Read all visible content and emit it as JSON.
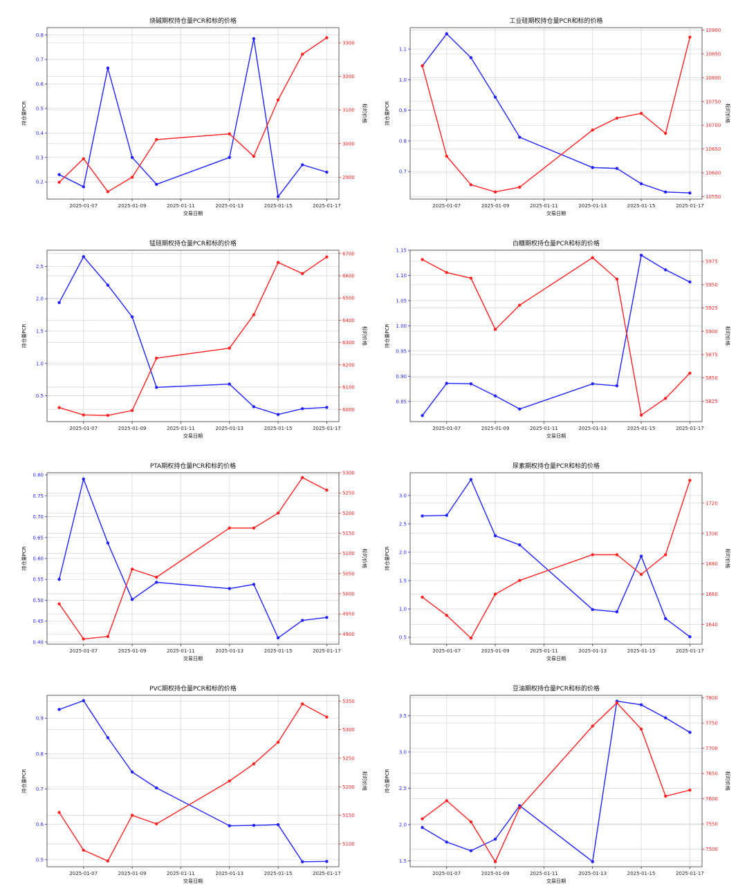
{
  "colors": {
    "pcr": "#1f1fff",
    "price": "#ff1f1f",
    "grid": "#d9d9d9",
    "axis": "#333333"
  },
  "chart_data": [
    {
      "type": "line",
      "title": "烧碱期权持仓量PCR和标的价格",
      "xlabel": "交易日期",
      "ylabel_left": "持仓量PCR",
      "ylabel_right": "标的价格",
      "x": [
        "2025-01-06",
        "2025-01-07",
        "2025-01-08",
        "2025-01-09",
        "2025-01-10",
        "2025-01-13",
        "2025-01-14",
        "2025-01-15",
        "2025-01-16",
        "2025-01-17"
      ],
      "xtick_labels": [
        "2025-01-07",
        "2025-01-09",
        "2025-01-11",
        "2025-01-13",
        "2025-01-15",
        "2025-01-17"
      ],
      "series": [
        {
          "values": [
            0.23,
            0.18,
            0.665,
            0.3,
            0.19,
            0.3,
            0.785,
            0.14,
            0.27,
            0.24
          ],
          "axis": "left"
        },
        {
          "values": [
            2885,
            2955,
            2857,
            2900,
            3012,
            3029,
            2962,
            3130,
            3266,
            3315
          ],
          "axis": "right"
        }
      ],
      "ylim_left": [
        0.13,
        0.83
      ],
      "yticks_left": [
        "0.2",
        "0.3",
        "0.4",
        "0.5",
        "0.6",
        "0.7",
        "0.8"
      ],
      "ylim_right": [
        2835,
        3345
      ],
      "yticks_right": [
        "2900",
        "3000",
        "3100",
        "3200",
        "3300"
      ]
    },
    {
      "type": "line",
      "title": "工业硅期权持仓量PCR和标的价格",
      "xlabel": "交易日期",
      "ylabel_left": "持仓量PCR",
      "ylabel_right": "标的价格",
      "x": [
        "2025-01-06",
        "2025-01-07",
        "2025-01-08",
        "2025-01-09",
        "2025-01-10",
        "2025-01-13",
        "2025-01-14",
        "2025-01-15",
        "2025-01-16",
        "2025-01-17"
      ],
      "xtick_labels": [
        "2025-01-07",
        "2025-01-09",
        "2025-01-11",
        "2025-01-13",
        "2025-01-15",
        "2025-01-17"
      ],
      "series": [
        {
          "values": [
            1.045,
            1.15,
            1.072,
            0.943,
            0.812,
            0.713,
            0.71,
            0.66,
            0.633,
            0.63
          ],
          "axis": "left"
        },
        {
          "values": [
            10825,
            10635,
            10575,
            10560,
            10570,
            10690,
            10715,
            10725,
            10683,
            10885
          ],
          "axis": "right"
        }
      ],
      "ylim_left": [
        0.61,
        1.17
      ],
      "yticks_left": [
        "0.7",
        "0.8",
        "0.9",
        "1.0",
        "1.1"
      ],
      "ylim_right": [
        10545,
        10905
      ],
      "yticks_right": [
        "10550",
        "10600",
        "10650",
        "10700",
        "10750",
        "10800",
        "10850",
        "10900"
      ]
    },
    {
      "type": "line",
      "title": "锰硅期权持仓量PCR和标的价格",
      "xlabel": "交易日期",
      "ylabel_left": "持仓量PCR",
      "ylabel_right": "标的价格",
      "x": [
        "2025-01-06",
        "2025-01-07",
        "2025-01-08",
        "2025-01-09",
        "2025-01-10",
        "2025-01-13",
        "2025-01-14",
        "2025-01-15",
        "2025-01-16",
        "2025-01-17"
      ],
      "xtick_labels": [
        "2025-01-07",
        "2025-01-09",
        "2025-01-11",
        "2025-01-13",
        "2025-01-15",
        "2025-01-17"
      ],
      "series": [
        {
          "values": [
            1.94,
            2.65,
            2.21,
            1.72,
            0.63,
            0.68,
            0.33,
            0.21,
            0.3,
            0.32
          ],
          "axis": "left"
        },
        {
          "values": [
            6008,
            5975,
            5973,
            5995,
            6230,
            6275,
            6425,
            6660,
            6610,
            6685
          ],
          "axis": "right"
        }
      ],
      "ylim_left": [
        0.1,
        2.75
      ],
      "yticks_left": [
        "0.5",
        "1.0",
        "1.5",
        "2.0",
        "2.5"
      ],
      "ylim_right": [
        5945,
        6715
      ],
      "yticks_right": [
        "6000",
        "6100",
        "6200",
        "6300",
        "6400",
        "6500",
        "6600",
        "6700"
      ]
    },
    {
      "type": "line",
      "title": "白糖期权持仓量PCR和标的价格",
      "xlabel": "交易日期",
      "ylabel_left": "持仓量PCR",
      "ylabel_right": "标的价格",
      "x": [
        "2025-01-06",
        "2025-01-07",
        "2025-01-08",
        "2025-01-09",
        "2025-01-10",
        "2025-01-13",
        "2025-01-14",
        "2025-01-15",
        "2025-01-16",
        "2025-01-17"
      ],
      "xtick_labels": [
        "2025-01-07",
        "2025-01-09",
        "2025-01-11",
        "2025-01-13",
        "2025-01-15",
        "2025-01-17"
      ],
      "series": [
        {
          "values": [
            0.822,
            0.886,
            0.885,
            0.861,
            0.835,
            0.885,
            0.881,
            1.14,
            1.111,
            1.087
          ],
          "axis": "left"
        },
        {
          "values": [
            5977,
            5963,
            5957,
            5902,
            5928,
            5979,
            5956,
            5810,
            5828,
            5855
          ],
          "axis": "right"
        }
      ],
      "ylim_left": [
        0.81,
        1.15
      ],
      "yticks_left": [
        "0.85",
        "0.90",
        "0.95",
        "1.00",
        "1.05",
        "1.10",
        "1.15"
      ],
      "ylim_right": [
        5803,
        5987
      ],
      "yticks_right": [
        "5825",
        "5850",
        "5875",
        "5900",
        "5925",
        "5950",
        "5975"
      ]
    },
    {
      "type": "line",
      "title": "PTA期权持仓量PCR和标的价格",
      "xlabel": "交易日期",
      "ylabel_left": "持仓量PCR",
      "ylabel_right": "标的价格",
      "x": [
        "2025-01-06",
        "2025-01-07",
        "2025-01-08",
        "2025-01-09",
        "2025-01-10",
        "2025-01-13",
        "2025-01-14",
        "2025-01-15",
        "2025-01-16",
        "2025-01-17"
      ],
      "xtick_labels": [
        "2025-01-07",
        "2025-01-09",
        "2025-01-11",
        "2025-01-13",
        "2025-01-15",
        "2025-01-17"
      ],
      "series": [
        {
          "values": [
            0.55,
            0.79,
            0.637,
            0.502,
            0.543,
            0.528,
            0.538,
            0.41,
            0.452,
            0.459
          ],
          "axis": "left"
        },
        {
          "values": [
            4975,
            4888,
            4894,
            5061,
            5041,
            5163,
            5163,
            5200,
            5288,
            5257
          ],
          "axis": "right"
        }
      ],
      "ylim_left": [
        0.395,
        0.805
      ],
      "yticks_left": [
        "0.40",
        "0.45",
        "0.50",
        "0.55",
        "0.60",
        "0.65",
        "0.70",
        "0.75",
        "0.80"
      ],
      "ylim_right": [
        4875,
        5300
      ],
      "yticks_right": [
        "4900",
        "4950",
        "5000",
        "5050",
        "5100",
        "5150",
        "5200",
        "5250",
        "5300"
      ]
    },
    {
      "type": "line",
      "title": "尿素期权持仓量PCR和标的价格",
      "xlabel": "交易日期",
      "ylabel_left": "持仓量PCR",
      "ylabel_right": "标的价格",
      "x": [
        "2025-01-06",
        "2025-01-07",
        "2025-01-08",
        "2025-01-09",
        "2025-01-10",
        "2025-01-13",
        "2025-01-14",
        "2025-01-15",
        "2025-01-16",
        "2025-01-17"
      ],
      "xtick_labels": [
        "2025-01-07",
        "2025-01-09",
        "2025-01-11",
        "2025-01-13",
        "2025-01-15",
        "2025-01-17"
      ],
      "series": [
        {
          "values": [
            2.64,
            2.65,
            3.28,
            2.29,
            2.13,
            0.99,
            0.95,
            1.93,
            0.83,
            0.51
          ],
          "axis": "left"
        },
        {
          "values": [
            1658,
            1646,
            1631,
            1660,
            1669,
            1686,
            1686,
            1673,
            1686,
            1735
          ],
          "axis": "right"
        }
      ],
      "ylim_left": [
        0.38,
        3.4
      ],
      "yticks_left": [
        "0.5",
        "1.0",
        "1.5",
        "2.0",
        "2.5",
        "3.0"
      ],
      "ylim_right": [
        1627,
        1740
      ],
      "yticks_right": [
        "1640",
        "1660",
        "1680",
        "1700",
        "1720"
      ]
    },
    {
      "type": "line",
      "title": "PVC期权持仓量PCR和标的价格",
      "xlabel": "交易日期",
      "ylabel_left": "持仓量PCR",
      "ylabel_right": "标的价格",
      "x": [
        "2025-01-06",
        "2025-01-07",
        "2025-01-08",
        "2025-01-09",
        "2025-01-10",
        "2025-01-13",
        "2025-01-14",
        "2025-01-15",
        "2025-01-16",
        "2025-01-17"
      ],
      "xtick_labels": [
        "2025-01-07",
        "2025-01-09",
        "2025-01-11",
        "2025-01-13",
        "2025-01-15",
        "2025-01-17"
      ],
      "series": [
        {
          "values": [
            0.925,
            0.95,
            0.845,
            0.748,
            0.703,
            0.596,
            0.597,
            0.599,
            0.494,
            0.495
          ],
          "axis": "left"
        },
        {
          "values": [
            5155,
            5089,
            5070,
            5150,
            5135,
            5210,
            5240,
            5278,
            5345,
            5322
          ],
          "axis": "right"
        }
      ],
      "ylim_left": [
        0.48,
        0.965
      ],
      "yticks_left": [
        "0.5",
        "0.6",
        "0.7",
        "0.8",
        "0.9"
      ],
      "ylim_right": [
        5060,
        5360
      ],
      "yticks_right": [
        "5100",
        "5150",
        "5200",
        "5250",
        "5300",
        "5350"
      ]
    },
    {
      "type": "line",
      "title": "豆油期权持仓量PCR和标的价格",
      "xlabel": "交易日期",
      "ylabel_left": "持仓量PCR",
      "ylabel_right": "标的价格",
      "x": [
        "2025-01-06",
        "2025-01-07",
        "2025-01-08",
        "2025-01-09",
        "2025-01-10",
        "2025-01-13",
        "2025-01-14",
        "2025-01-15",
        "2025-01-16",
        "2025-01-17"
      ],
      "xtick_labels": [
        "2025-01-07",
        "2025-01-09",
        "2025-01-11",
        "2025-01-13",
        "2025-01-15",
        "2025-01-17"
      ],
      "series": [
        {
          "values": [
            1.96,
            1.76,
            1.64,
            1.8,
            2.26,
            1.49,
            3.7,
            3.65,
            3.47,
            3.27
          ],
          "axis": "left"
        },
        {
          "values": [
            7560,
            7596,
            7554,
            7475,
            7582,
            7744,
            7790,
            7738,
            7605,
            7617
          ],
          "axis": "right"
        }
      ],
      "ylim_left": [
        1.42,
        3.78
      ],
      "yticks_left": [
        "1.5",
        "2.0",
        "2.5",
        "3.0",
        "3.5"
      ],
      "ylim_right": [
        7465,
        7805
      ],
      "yticks_right": [
        "7500",
        "7550",
        "7600",
        "7650",
        "7700",
        "7750",
        "7800"
      ]
    }
  ]
}
